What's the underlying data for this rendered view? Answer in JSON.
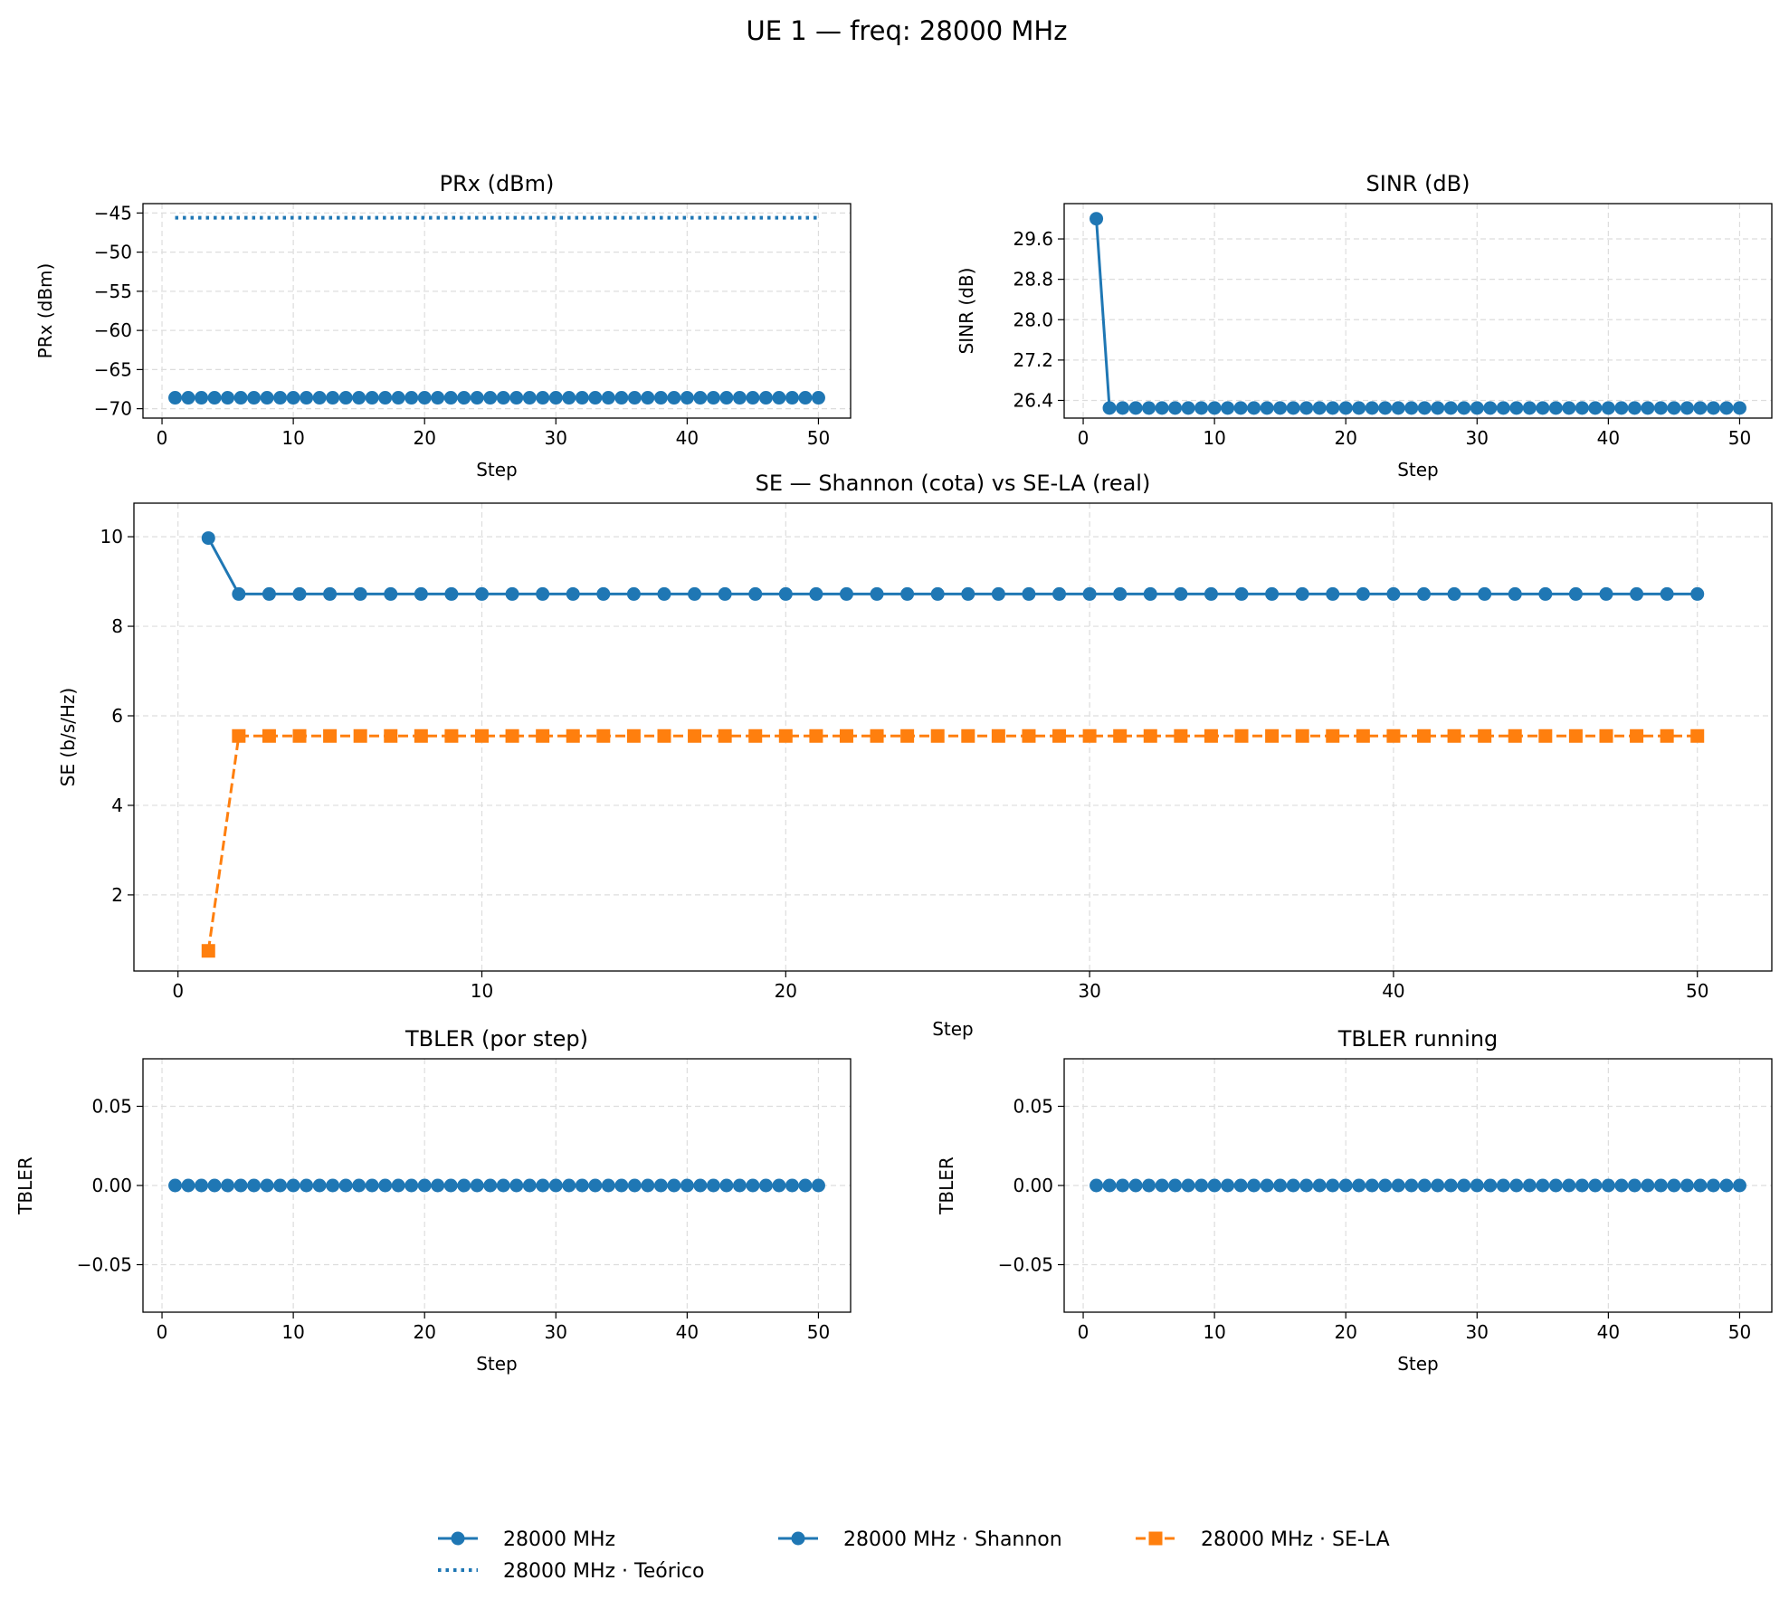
{
  "figure": {
    "suptitle": "UE 1 — freq: 28000 MHz"
  },
  "colors": {
    "blue": "#1f77b4",
    "orange": "#ff7f0e",
    "grid": "#dddddd"
  },
  "legend": {
    "placement": "bottom-center",
    "entries": [
      {
        "label": "28000 MHz",
        "style": "solid-circle",
        "color": "#1f77b4"
      },
      {
        "label": "28000 MHz · Teórico",
        "style": "dotted",
        "color": "#1f77b4"
      },
      {
        "label": "28000 MHz · Shannon",
        "style": "solid-circle",
        "color": "#1f77b4"
      },
      {
        "label": "28000 MHz · SE-LA",
        "style": "dashed-square",
        "color": "#ff7f0e"
      }
    ]
  },
  "chart_data": [
    {
      "id": "prx",
      "type": "line",
      "title": "PRx (dBm)",
      "xlabel": "Step",
      "ylabel": "PRx (dBm)",
      "xlim": [
        -1.45,
        52.45
      ],
      "ylim": [
        -71.2,
        -43.8
      ],
      "xticks": [
        0,
        10,
        20,
        30,
        40,
        50
      ],
      "yticks": [
        -70,
        -65,
        -60,
        -55,
        -50,
        -45
      ],
      "grid": true,
      "series": [
        {
          "name": "28000 MHz",
          "style": "solid-circle",
          "color": "#1f77b4",
          "x_start": 1,
          "x_end": 50,
          "values": [
            -68.6
          ]
        },
        {
          "name": "28000 MHz · Teórico",
          "style": "dotted",
          "color": "#1f77b4",
          "x_start": 1,
          "x_end": 50,
          "values": [
            -45.6
          ]
        }
      ]
    },
    {
      "id": "sinr",
      "type": "line",
      "title": "SINR (dB)",
      "xlabel": "Step",
      "ylabel": "SINR (dB)",
      "xlim": [
        -1.45,
        52.45
      ],
      "ylim": [
        26.05,
        30.3
      ],
      "xticks": [
        0,
        10,
        20,
        30,
        40,
        50
      ],
      "yticks": [
        26.4,
        27.2,
        28.0,
        28.8,
        29.6
      ],
      "grid": true,
      "series": [
        {
          "name": "28000 MHz",
          "style": "solid-circle",
          "color": "#1f77b4",
          "x_start": 1,
          "x_end": 50,
          "values": [
            30.0,
            26.25
          ]
        }
      ]
    },
    {
      "id": "se",
      "type": "line",
      "title": "SE — Shannon (cota) vs SE-LA (real)",
      "xlabel": "Step",
      "ylabel": "SE (b/s/Hz)",
      "xlim": [
        -1.45,
        52.45
      ],
      "ylim": [
        0.3,
        10.75
      ],
      "xticks": [
        0,
        10,
        20,
        30,
        40,
        50
      ],
      "yticks": [
        2,
        4,
        6,
        8,
        10
      ],
      "grid": true,
      "series": [
        {
          "name": "28000 MHz · Shannon",
          "style": "solid-circle",
          "color": "#1f77b4",
          "x_start": 1,
          "x_end": 50,
          "values": [
            9.97,
            8.72
          ]
        },
        {
          "name": "28000 MHz · SE-LA",
          "style": "dashed-square",
          "color": "#ff7f0e",
          "x_start": 1,
          "x_end": 50,
          "values": [
            0.75,
            5.55
          ]
        }
      ]
    },
    {
      "id": "tbler",
      "type": "line",
      "title": "TBLER (por step)",
      "xlabel": "Step",
      "ylabel": "TBLER",
      "xlim": [
        -1.45,
        52.45
      ],
      "ylim": [
        -0.08,
        0.08
      ],
      "xticks": [
        0,
        10,
        20,
        30,
        40,
        50
      ],
      "yticks": [
        -0.05,
        0.0,
        0.05
      ],
      "ytick_labels": [
        "−0.05",
        "0.00",
        "0.05"
      ],
      "grid": true,
      "series": [
        {
          "name": "28000 MHz",
          "style": "solid-circle",
          "color": "#1f77b4",
          "x_start": 1,
          "x_end": 50,
          "values": [
            0.0
          ]
        }
      ]
    },
    {
      "id": "tbler_running",
      "type": "line",
      "title": "TBLER running",
      "xlabel": "Step",
      "ylabel": "TBLER",
      "xlim": [
        -1.45,
        52.45
      ],
      "ylim": [
        -0.08,
        0.08
      ],
      "xticks": [
        0,
        10,
        20,
        30,
        40,
        50
      ],
      "yticks": [
        -0.05,
        0.0,
        0.05
      ],
      "ytick_labels": [
        "−0.05",
        "0.00",
        "0.05"
      ],
      "grid": true,
      "series": [
        {
          "name": "28000 MHz",
          "style": "solid-circle",
          "color": "#1f77b4",
          "x_start": 1,
          "x_end": 50,
          "values": [
            0.0
          ]
        }
      ]
    }
  ]
}
